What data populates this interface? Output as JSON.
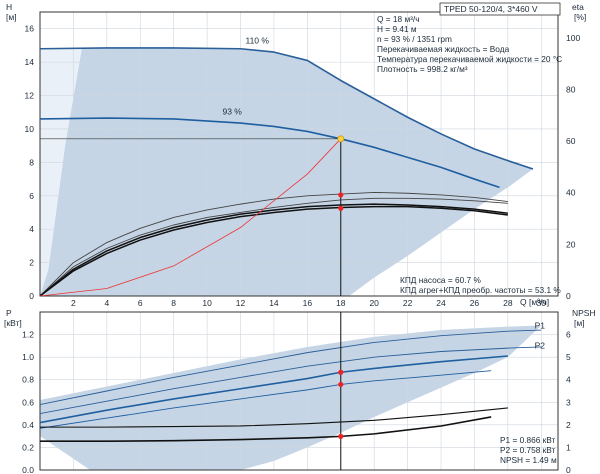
{
  "chart_data": [
    {
      "type": "line",
      "title": "TPED 50-120/4, 3*460 V",
      "xlabel": "Q [м³/ч]",
      "ylabel": "H\n[м]",
      "y2label": "eta\n[%]",
      "xlim": [
        0,
        31
      ],
      "xticks": [
        2,
        4,
        6,
        8,
        10,
        12,
        14,
        16,
        18,
        20,
        22,
        24,
        26,
        28,
        30
      ],
      "ylim": [
        0,
        17
      ],
      "yticks": [
        0,
        2,
        4,
        6,
        8,
        10,
        12,
        14,
        16
      ],
      "y2lim": [
        0,
        110
      ],
      "y2ticks": [
        0,
        20,
        40,
        60,
        80,
        100
      ],
      "info_lines": [
        "Q = 18 м³/ч",
        "H = 9.41 м",
        "n = 93 % / 1351 rpm",
        "Перекачиваемая жидкость = Вода",
        "Температура перекачиваемой жидкости = 20 °C",
        "Плотность = 998.2 кг/м³"
      ],
      "efficiency_lines": [
        "КПД насоса = 60.7 %",
        "КПД агрег+КПД преобр. частоты = 53.1 %"
      ],
      "series": [
        {
          "name": "110 %",
          "color": "#2a5f99",
          "x": [
            0,
            4,
            8,
            12,
            14,
            16,
            18,
            20,
            22,
            24,
            26,
            28,
            29.5
          ],
          "y": [
            14.8,
            14.85,
            14.85,
            14.8,
            14.6,
            14.1,
            12.9,
            11.8,
            10.7,
            9.7,
            8.8,
            8.1,
            7.6
          ]
        },
        {
          "name": "93 %",
          "color": "#1f5fa0",
          "x": [
            0,
            4,
            8,
            12,
            14,
            16,
            18,
            20,
            22,
            24,
            26,
            27.5
          ],
          "y": [
            10.6,
            10.65,
            10.6,
            10.35,
            10.15,
            9.85,
            9.41,
            8.9,
            8.3,
            7.7,
            7.0,
            6.5
          ]
        },
        {
          "name": "",
          "color": "#444444",
          "x": [
            0,
            2,
            4,
            6,
            8,
            10,
            12,
            14,
            16,
            18,
            20,
            22,
            24,
            26,
            28
          ],
          "y": [
            0,
            1.75,
            2.85,
            3.65,
            4.25,
            4.7,
            5.0,
            5.3,
            5.55,
            5.75,
            5.85,
            5.85,
            5.8,
            5.7,
            5.55
          ]
        },
        {
          "name": "",
          "color": "#444444",
          "x": [
            0,
            2,
            4,
            6,
            8,
            10,
            12,
            14,
            16,
            18,
            20,
            22,
            24,
            26,
            28
          ],
          "y": [
            0,
            2.0,
            3.2,
            4.05,
            4.7,
            5.15,
            5.5,
            5.8,
            6.0,
            6.1,
            6.2,
            6.15,
            6.05,
            5.9,
            5.65
          ]
        },
        {
          "name": "",
          "color": "#111111",
          "x": [
            0,
            2,
            4,
            6,
            8,
            10,
            12,
            14,
            16,
            18,
            20,
            22,
            24,
            26,
            28
          ],
          "y": [
            0,
            1.5,
            2.55,
            3.35,
            3.95,
            4.4,
            4.75,
            5.0,
            5.2,
            5.3,
            5.35,
            5.35,
            5.25,
            5.1,
            4.85
          ]
        },
        {
          "name": "",
          "color": "#111111",
          "x": [
            0,
            2,
            4,
            6,
            8,
            10,
            12,
            14,
            16,
            18,
            20,
            22,
            24,
            26,
            28
          ],
          "y": [
            0,
            1.6,
            2.7,
            3.5,
            4.1,
            4.55,
            4.9,
            5.15,
            5.35,
            5.45,
            5.5,
            5.45,
            5.35,
            5.2,
            4.95
          ]
        },
        {
          "name": "",
          "color": "#ee3333",
          "x": [
            0,
            4,
            8,
            12,
            16,
            18
          ],
          "y": [
            0,
            0.45,
            1.8,
            4.1,
            7.3,
            9.41
          ]
        }
      ],
      "operating_point": {
        "x": 18,
        "y": 9.41
      },
      "efficiency_points": [
        {
          "x": 18,
          "y": 6.05
        },
        {
          "x": 18,
          "y": 5.25
        }
      ]
    },
    {
      "type": "line",
      "xlabel": "",
      "ylabel": "P\n[кВт]",
      "y2label": "NPSH\n[м]",
      "xlim": [
        0,
        31
      ],
      "ylim": [
        0,
        1.4
      ],
      "yticks": [
        0,
        0.2,
        0.4,
        0.6,
        0.8,
        1.0,
        1.2
      ],
      "y2lim": [
        0,
        7
      ],
      "y2ticks": [
        0,
        1,
        2,
        3,
        4,
        5,
        6
      ],
      "values_lines": [
        "P1 = 0.866 кВт",
        "P2 = 0.758 кВт",
        "NPSH = 1.49 м"
      ],
      "series": [
        {
          "name": "P1",
          "color": "#2a5f99",
          "x": [
            0,
            4,
            8,
            12,
            16,
            20,
            24,
            28,
            30
          ],
          "y": [
            0.58,
            0.7,
            0.82,
            0.93,
            1.04,
            1.13,
            1.19,
            1.23,
            1.24
          ]
        },
        {
          "name": "P2",
          "color": "#2a5f99",
          "x": [
            0,
            4,
            8,
            12,
            16,
            20,
            24,
            28,
            30
          ],
          "y": [
            0.5,
            0.61,
            0.72,
            0.82,
            0.92,
            1.0,
            1.05,
            1.08,
            1.09
          ]
        },
        {
          "name": "",
          "color": "#1f5fa0",
          "x": [
            0,
            4,
            8,
            12,
            16,
            18,
            20,
            24,
            28
          ],
          "y": [
            0.42,
            0.53,
            0.63,
            0.72,
            0.81,
            0.866,
            0.9,
            0.96,
            1.01
          ]
        },
        {
          "name": "",
          "color": "#1f5fa0",
          "x": [
            0,
            4,
            8,
            12,
            16,
            18,
            20,
            24,
            27
          ],
          "y": [
            0.37,
            0.46,
            0.55,
            0.63,
            0.71,
            0.758,
            0.79,
            0.84,
            0.88
          ]
        },
        {
          "name": "",
          "color": "#111111",
          "x": [
            0,
            4,
            8,
            12,
            16,
            20,
            24,
            28
          ],
          "y": [
            0.38,
            0.38,
            0.385,
            0.39,
            0.41,
            0.44,
            0.49,
            0.55
          ]
        },
        {
          "name": "",
          "color": "#111111",
          "x": [
            0,
            4,
            8,
            12,
            16,
            18,
            20,
            24,
            27
          ],
          "y": [
            0.255,
            0.255,
            0.26,
            0.27,
            0.285,
            0.298,
            0.32,
            0.39,
            0.47
          ]
        }
      ],
      "operating_points": [
        {
          "x": 18,
          "y": 0.866
        },
        {
          "x": 18,
          "y": 0.758
        },
        {
          "x": 18,
          "y": 0.298
        }
      ]
    }
  ]
}
